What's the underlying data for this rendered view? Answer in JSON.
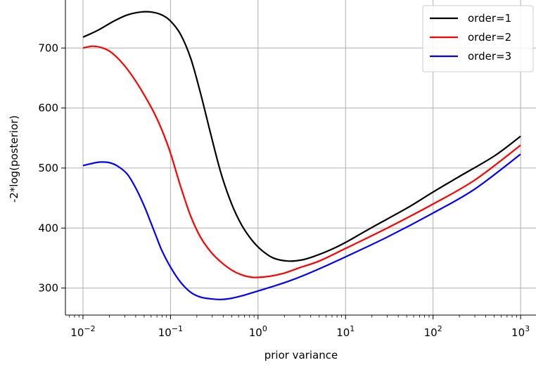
{
  "chart_data": {
    "type": "line",
    "title": "",
    "xlabel": "prior variance",
    "ylabel": "-2*log(posterior)",
    "xscale": "log",
    "xlim": [
      0.0063,
      1500
    ],
    "ylim": [
      255,
      780
    ],
    "grid": true,
    "legend_position": "top-right",
    "x_ticks": [
      {
        "value": 0.01,
        "base": "10",
        "exp": "−2"
      },
      {
        "value": 0.1,
        "base": "10",
        "exp": "−1"
      },
      {
        "value": 1,
        "base": "10",
        "exp": "0"
      },
      {
        "value": 10,
        "base": "10",
        "exp": "1"
      },
      {
        "value": 100,
        "base": "10",
        "exp": "2"
      },
      {
        "value": 1000,
        "base": "10",
        "exp": "3"
      }
    ],
    "y_ticks": [
      {
        "value": 300,
        "label": "300"
      },
      {
        "value": 400,
        "label": "400"
      },
      {
        "value": 500,
        "label": "500"
      },
      {
        "value": 600,
        "label": "600"
      },
      {
        "value": 700,
        "label": "700"
      }
    ],
    "series": [
      {
        "name": "order=1",
        "color": "#000000",
        "x": [
          0.01,
          0.015,
          0.022,
          0.032,
          0.046,
          0.06,
          0.08,
          0.1,
          0.13,
          0.17,
          0.22,
          0.29,
          0.38,
          0.5,
          0.65,
          0.85,
          1.1,
          1.5,
          2.2,
          3.2,
          4.6,
          6.8,
          10,
          20,
          50,
          100,
          200,
          500,
          1000
        ],
        "y": [
          718,
          730,
          744,
          755,
          760,
          760,
          755,
          745,
          723,
          683,
          625,
          555,
          490,
          440,
          405,
          380,
          363,
          350,
          345,
          347,
          354,
          364,
          376,
          401,
          433,
          460,
          486,
          520,
          553
        ]
      },
      {
        "name": "order=2",
        "color": "#ff0000",
        "x": [
          0.01,
          0.0115,
          0.013,
          0.016,
          0.02,
          0.025,
          0.032,
          0.04,
          0.05,
          0.065,
          0.08,
          0.1,
          0.13,
          0.17,
          0.22,
          0.29,
          0.38,
          0.5,
          0.65,
          0.85,
          1.05,
          1.4,
          2,
          3,
          5,
          10,
          30,
          100,
          300,
          1000
        ],
        "y": [
          700,
          702,
          703,
          701,
          695,
          683,
          665,
          645,
          622,
          592,
          563,
          525,
          470,
          420,
          385,
          360,
          343,
          330,
          322,
          318,
          318,
          320,
          325,
          334,
          345,
          366,
          400,
          440,
          480,
          538
        ]
      },
      {
        "name": "order=3",
        "color": "#0000ff",
        "x": [
          0.01,
          0.013,
          0.016,
          0.02,
          0.025,
          0.032,
          0.04,
          0.05,
          0.06,
          0.07,
          0.08,
          0.1,
          0.13,
          0.17,
          0.22,
          0.29,
          0.38,
          0.5,
          0.65,
          0.85,
          1.1,
          1.5,
          2.2,
          3.2,
          5,
          10,
          30,
          100,
          300,
          1000
        ],
        "y": [
          504,
          508,
          510,
          509,
          503,
          490,
          467,
          437,
          408,
          383,
          362,
          335,
          310,
          293,
          285,
          282,
          281,
          283,
          287,
          292,
          297,
          303,
          311,
          320,
          332,
          352,
          385,
          425,
          465,
          523
        ]
      }
    ]
  }
}
